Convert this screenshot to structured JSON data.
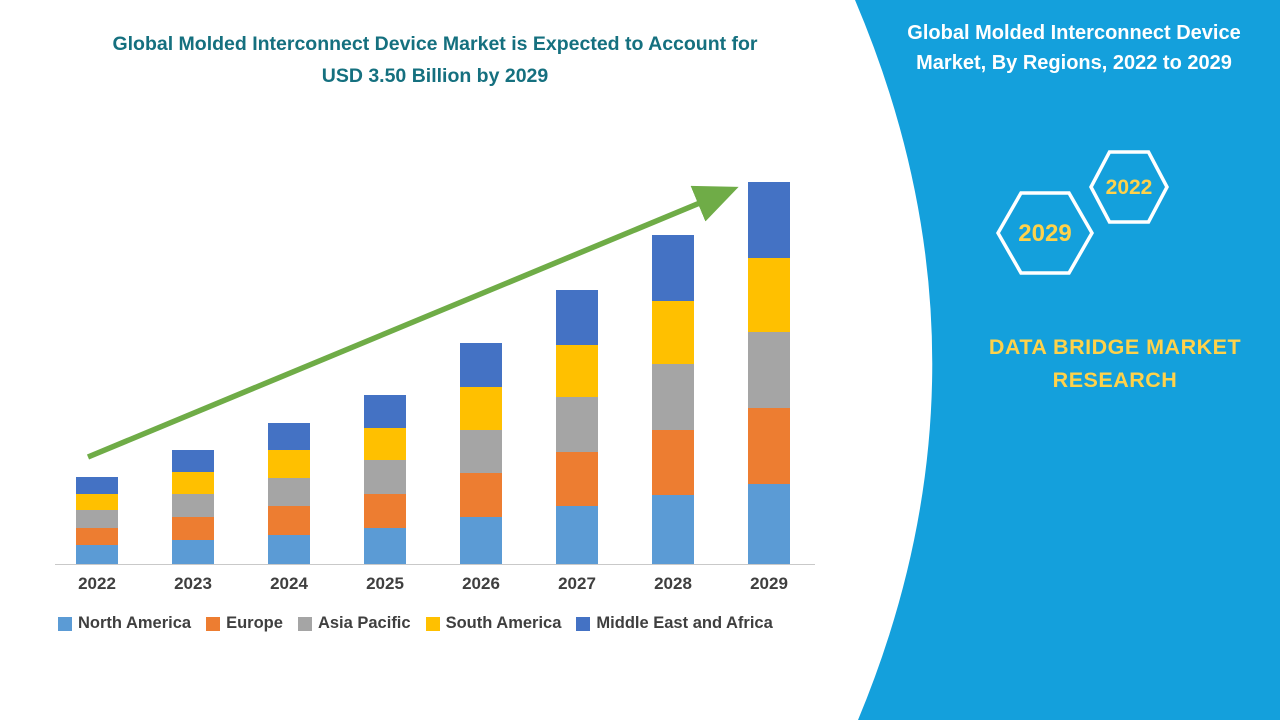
{
  "chart_data": {
    "type": "bar",
    "stacked": true,
    "title": "Global Molded Interconnect Device Market is Expected to Account for USD 3.50 Billion by 2029",
    "xlabel": "",
    "ylabel": "",
    "unit": "USD Billion",
    "ylim": [
      0,
      3.9
    ],
    "gridlines": false,
    "legend_position": "bottom",
    "categories": [
      "2022",
      "2023",
      "2024",
      "2025",
      "2026",
      "2027",
      "2028",
      "2029"
    ],
    "series": [
      {
        "name": "North America",
        "color": "#5B9BD5",
        "values": [
          0.17,
          0.22,
          0.27,
          0.33,
          0.43,
          0.53,
          0.63,
          0.73
        ]
      },
      {
        "name": "Europe",
        "color": "#ED7D31",
        "values": [
          0.16,
          0.21,
          0.26,
          0.31,
          0.4,
          0.5,
          0.6,
          0.7
        ]
      },
      {
        "name": "Asia Pacific",
        "color": "#A5A5A5",
        "values": [
          0.16,
          0.21,
          0.26,
          0.31,
          0.4,
          0.5,
          0.6,
          0.7
        ]
      },
      {
        "name": "South America",
        "color": "#FFC000",
        "values": [
          0.15,
          0.2,
          0.25,
          0.3,
          0.39,
          0.48,
          0.58,
          0.67
        ]
      },
      {
        "name": "Middle East and Africa",
        "color": "#4472C4",
        "values": [
          0.16,
          0.21,
          0.25,
          0.3,
          0.4,
          0.5,
          0.6,
          0.7
        ]
      }
    ],
    "totals": [
      0.8,
      1.05,
      1.29,
      1.55,
      2.02,
      2.51,
      3.01,
      3.5
    ],
    "highlight_value": "USD 3.50 Billion",
    "highlight_year": "2029",
    "trend_arrow": {
      "present": true,
      "color": "#6FAC47"
    }
  },
  "side_panel": {
    "background_color": "#14A0DC",
    "title": "Global Molded Interconnect Device Market, By Regions, 2022 to 2029",
    "hexagon_labels": [
      "2029",
      "2022"
    ],
    "brand": "DATA BRIDGE MARKET RESEARCH",
    "accent_text_color": "#FFD24A"
  }
}
